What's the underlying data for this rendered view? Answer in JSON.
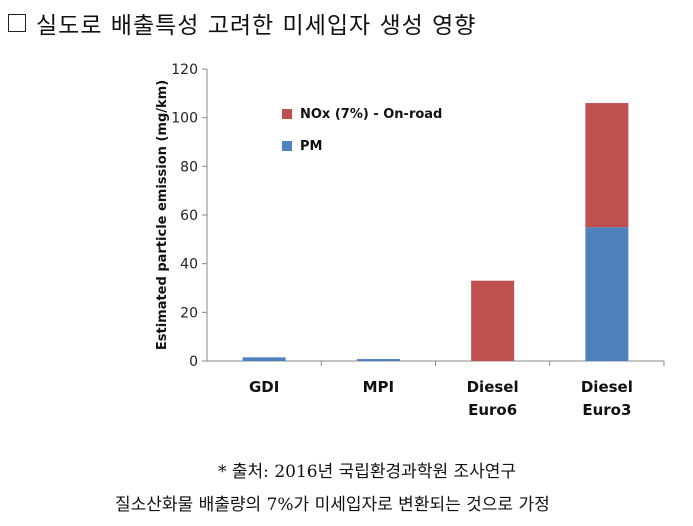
{
  "header": {
    "title": "실도로 배출특성 고려한 미세입자 생성 영향"
  },
  "chart_data": {
    "type": "bar",
    "stacked": true,
    "categories": [
      [
        "GDI"
      ],
      [
        "MPI"
      ],
      [
        "Diesel",
        "Euro6"
      ],
      [
        "Diesel",
        "Euro3"
      ]
    ],
    "ylabel": "Estimated particle emission (mg/km)",
    "ylim": [
      0,
      120
    ],
    "yticks": [
      0,
      20,
      40,
      60,
      80,
      100,
      120
    ],
    "grid": false,
    "legend_position": "top-right",
    "series": [
      {
        "name": "PM",
        "color": "#4f81bd",
        "values": [
          1.5,
          0.8,
          0,
          55
        ]
      },
      {
        "name": "NOx (7%) - On-road",
        "color": "#c0504d",
        "values": [
          0,
          0,
          33,
          51
        ]
      }
    ],
    "legend": [
      {
        "name": "NOx (7%) - On-road",
        "color": "#c0504d"
      },
      {
        "name": "PM",
        "color": "#4f81bd"
      }
    ]
  },
  "footnotes": {
    "source": "* 출처: 2016년 국립환경과학원 조사연구",
    "assumption": "질소산화물 배출량의 7%가 미세입자로 변환되는 것으로 가정"
  }
}
